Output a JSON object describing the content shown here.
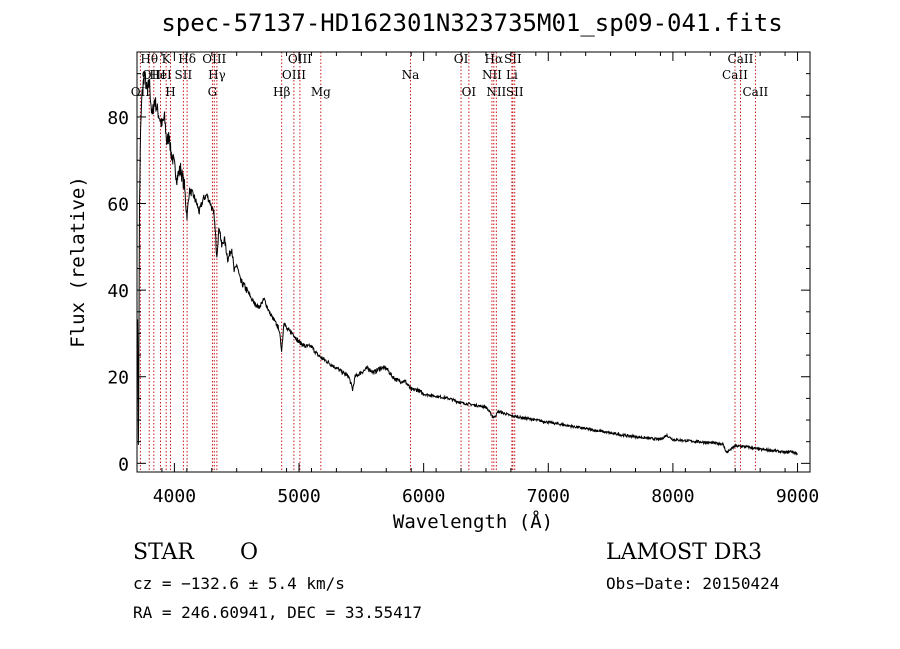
{
  "chart_data": {
    "type": "line",
    "title": "spec-57137-HD162301N323735M01_sp09-041.fits",
    "xlabel": "Wavelength (Å)",
    "ylabel": "Flux (relative)",
    "xlim": [
      3700,
      9100
    ],
    "ylim": [
      -2,
      95
    ],
    "xticks": [
      4000,
      5000,
      6000,
      7000,
      8000,
      9000
    ],
    "yticks": [
      0,
      20,
      40,
      60,
      80
    ],
    "grid": false,
    "series": [
      {
        "name": "spectrum",
        "x": [
          3705,
          3712,
          3720,
          3730,
          3740,
          3760,
          3780,
          3800,
          3820,
          3840,
          3860,
          3880,
          3900,
          3920,
          3940,
          3960,
          3970,
          3990,
          4020,
          4050,
          4080,
          4101,
          4120,
          4150,
          4180,
          4200,
          4230,
          4260,
          4290,
          4320,
          4340,
          4360,
          4380,
          4400,
          4430,
          4460,
          4480,
          4500,
          4530,
          4560,
          4600,
          4640,
          4680,
          4720,
          4760,
          4800,
          4840,
          4861,
          4880,
          4900,
          4950,
          5000,
          5050,
          5100,
          5150,
          5200,
          5300,
          5400,
          5430,
          5450,
          5500,
          5550,
          5600,
          5650,
          5700,
          5750,
          5800,
          5850,
          5900,
          5950,
          6000,
          6100,
          6200,
          6300,
          6400,
          6500,
          6563,
          6600,
          6700,
          6800,
          6900,
          7000,
          7200,
          7400,
          7600,
          7800,
          7900,
          7950,
          8000,
          8200,
          8400,
          8430,
          8500,
          8600,
          8700,
          8800,
          8900,
          8950,
          9000
        ],
        "y": [
          35,
          0,
          60,
          78,
          85,
          90,
          86,
          88,
          80,
          84,
          82,
          80,
          78,
          80,
          74,
          76,
          72,
          70,
          66,
          68,
          64,
          57,
          63,
          62,
          60,
          58,
          61,
          62,
          60,
          57,
          48,
          55,
          50,
          52,
          47,
          50,
          44,
          46,
          42,
          41,
          39,
          37,
          36,
          38,
          35,
          33,
          31,
          26,
          33,
          31,
          30,
          28,
          27,
          27,
          25,
          24,
          22,
          20,
          17,
          20,
          21,
          22,
          21,
          22,
          22,
          20,
          19,
          19,
          17,
          17,
          16,
          15.5,
          15,
          14,
          13.5,
          13,
          10.5,
          12,
          11,
          10.5,
          10,
          9.5,
          8.5,
          7.5,
          6.5,
          5.8,
          5.5,
          6.5,
          5.5,
          5,
          4.5,
          2.5,
          4,
          3.8,
          3.2,
          3,
          2.5,
          2.8,
          2.2
        ]
      }
    ],
    "lines": [
      {
        "label": "OII",
        "x": 3727,
        "row": 3
      },
      {
        "label": "Hθ",
        "x": 3798,
        "row": 1
      },
      {
        "label": "OIII",
        "x": 3835,
        "row": 2
      },
      {
        "label": "HeI",
        "x": 3889,
        "row": 2
      },
      {
        "label": "K",
        "x": 3934,
        "row": 1
      },
      {
        "label": "H",
        "x": 3969,
        "row": 3
      },
      {
        "label": "SII",
        "x": 4072,
        "row": 2
      },
      {
        "label": "Hδ",
        "x": 4102,
        "row": 1
      },
      {
        "label": "G",
        "x": 4305,
        "row": 3
      },
      {
        "label": "OIII",
        "x": 4320,
        "row": 1
      },
      {
        "label": "Hγ",
        "x": 4341,
        "row": 2
      },
      {
        "label": "Hβ",
        "x": 4861,
        "row": 3
      },
      {
        "label": "OIII",
        "x": 4959,
        "row": 2
      },
      {
        "label": "OIII",
        "x": 5007,
        "row": 1
      },
      {
        "label": "Mg",
        "x": 5175,
        "row": 3
      },
      {
        "label": "Na",
        "x": 5894,
        "row": 2
      },
      {
        "label": "OI",
        "x": 6300,
        "row": 1
      },
      {
        "label": "OI",
        "x": 6363,
        "row": 3
      },
      {
        "label": "NII",
        "x": 6548,
        "row": 2
      },
      {
        "label": "Hα",
        "x": 6563,
        "row": 1
      },
      {
        "label": "NII",
        "x": 6583,
        "row": 3
      },
      {
        "label": "SII",
        "x": 6716,
        "row": 1
      },
      {
        "label": "Li",
        "x": 6708,
        "row": 2
      },
      {
        "label": "SII",
        "x": 6731,
        "row": 3
      },
      {
        "label": "CaII",
        "x": 8498,
        "row": 2
      },
      {
        "label": "CaII",
        "x": 8542,
        "row": 1
      },
      {
        "label": "CaII",
        "x": 8662,
        "row": 3
      }
    ]
  },
  "info": {
    "class": "STAR",
    "subclass": "O",
    "survey": "LAMOST DR3",
    "cz": "cz = −132.6 ± 5.4 km/s",
    "obs_date": "Obs−Date: 20150424",
    "coords": "RA = 246.60941, DEC =  33.55417"
  }
}
